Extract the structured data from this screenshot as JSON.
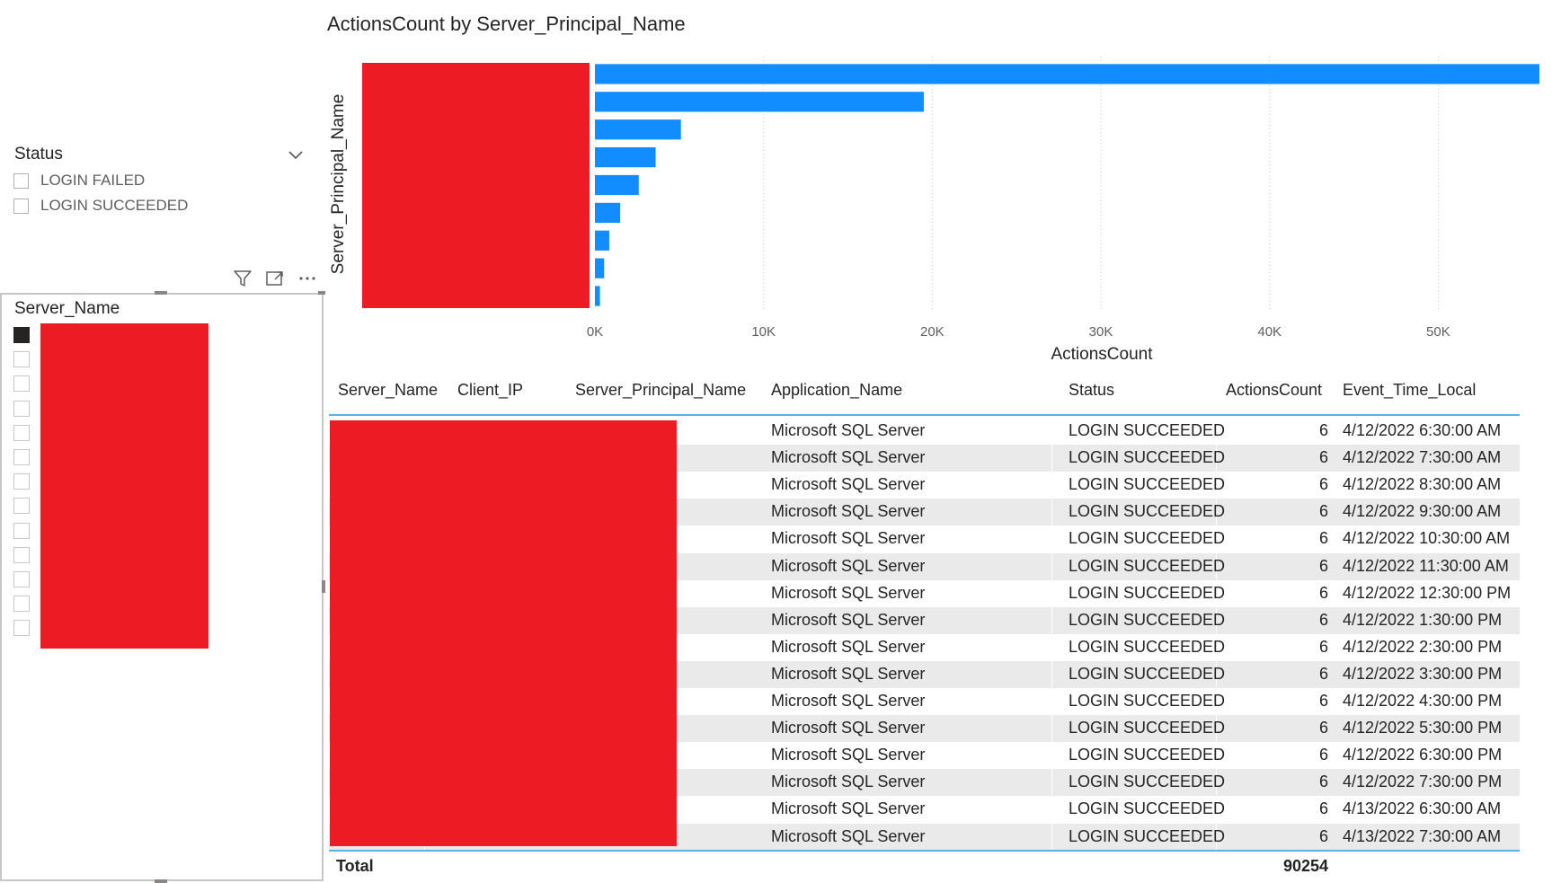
{
  "status_slicer": {
    "title": "Status",
    "items": [
      {
        "label": "LOGIN FAILED",
        "checked": false
      },
      {
        "label": "LOGIN SUCCEEDED",
        "checked": false
      }
    ]
  },
  "server_slicer": {
    "title": "Server_Name",
    "item_count": 13,
    "checked_index": 0
  },
  "icons": {
    "chevron": "chevron-down-icon",
    "filter": "filter-icon",
    "focus": "focus-mode-icon",
    "more": "more-options-icon"
  },
  "colors": {
    "bar": "#118dff",
    "redaction": "#ed1c24",
    "accent_rule": "#5ab0e8"
  },
  "chart_data": {
    "type": "bar",
    "orientation": "horizontal",
    "title": "ActionsCount by Server_Principal_Name",
    "xlabel": "ActionsCount",
    "ylabel": "Server_Principal_Name",
    "xlim": [
      0,
      56000
    ],
    "xticks": [
      0,
      10000,
      20000,
      30000,
      40000,
      50000
    ],
    "xtick_labels": [
      "0K",
      "10K",
      "20K",
      "30K",
      "40K",
      "50K"
    ],
    "categories": [
      "",
      "",
      "",
      "",
      "",
      "",
      "",
      "",
      ""
    ],
    "values": [
      56000,
      19500,
      5100,
      3600,
      2600,
      1500,
      850,
      550,
      300
    ],
    "grid": "vertical-dotted"
  },
  "table": {
    "headers": [
      "Server_Name",
      "Client_IP",
      "Server_Principal_Name",
      "Application_Name",
      "Status",
      "ActionsCount",
      "Event_Time_Local"
    ],
    "rows": [
      {
        "app": "Microsoft SQL Server",
        "status": "LOGIN SUCCEEDED",
        "count": "6",
        "time": "4/12/2022 6:30:00 AM"
      },
      {
        "app": "Microsoft SQL Server",
        "status": "LOGIN SUCCEEDED",
        "count": "6",
        "time": "4/12/2022 7:30:00 AM"
      },
      {
        "app": "Microsoft SQL Server",
        "status": "LOGIN SUCCEEDED",
        "count": "6",
        "time": "4/12/2022 8:30:00 AM"
      },
      {
        "app": "Microsoft SQL Server",
        "status": "LOGIN SUCCEEDED",
        "count": "6",
        "time": "4/12/2022 9:30:00 AM"
      },
      {
        "app": "Microsoft SQL Server",
        "status": "LOGIN SUCCEEDED",
        "count": "6",
        "time": "4/12/2022 10:30:00 AM"
      },
      {
        "app": "Microsoft SQL Server",
        "status": "LOGIN SUCCEEDED",
        "count": "6",
        "time": "4/12/2022 11:30:00 AM"
      },
      {
        "app": "Microsoft SQL Server",
        "status": "LOGIN SUCCEEDED",
        "count": "6",
        "time": "4/12/2022 12:30:00 PM"
      },
      {
        "app": "Microsoft SQL Server",
        "status": "LOGIN SUCCEEDED",
        "count": "6",
        "time": "4/12/2022 1:30:00 PM"
      },
      {
        "app": "Microsoft SQL Server",
        "status": "LOGIN SUCCEEDED",
        "count": "6",
        "time": "4/12/2022 2:30:00 PM"
      },
      {
        "app": "Microsoft SQL Server",
        "status": "LOGIN SUCCEEDED",
        "count": "6",
        "time": "4/12/2022 3:30:00 PM"
      },
      {
        "app": "Microsoft SQL Server",
        "status": "LOGIN SUCCEEDED",
        "count": "6",
        "time": "4/12/2022 4:30:00 PM"
      },
      {
        "app": "Microsoft SQL Server",
        "status": "LOGIN SUCCEEDED",
        "count": "6",
        "time": "4/12/2022 5:30:00 PM"
      },
      {
        "app": "Microsoft SQL Server",
        "status": "LOGIN SUCCEEDED",
        "count": "6",
        "time": "4/12/2022 6:30:00 PM"
      },
      {
        "app": "Microsoft SQL Server",
        "status": "LOGIN SUCCEEDED",
        "count": "6",
        "time": "4/12/2022 7:30:00 PM"
      },
      {
        "app": "Microsoft SQL Server",
        "status": "LOGIN SUCCEEDED",
        "count": "6",
        "time": "4/13/2022 6:30:00 AM"
      },
      {
        "app": "Microsoft SQL Server",
        "status": "LOGIN SUCCEEDED",
        "count": "6",
        "time": "4/13/2022 7:30:00 AM"
      }
    ],
    "total_label": "Total",
    "total_value": "90254"
  }
}
